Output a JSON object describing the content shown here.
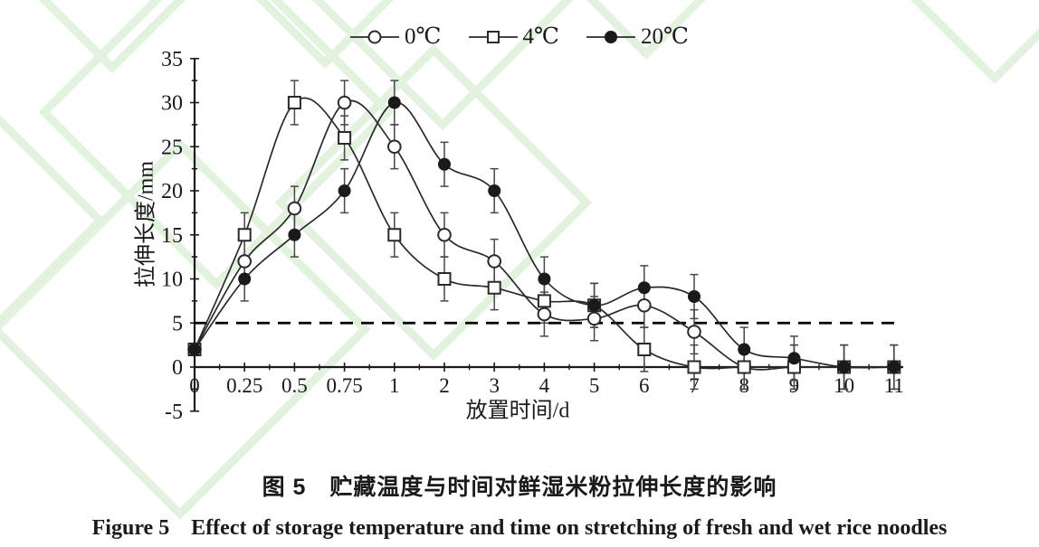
{
  "page": {
    "background_color": "#ffffff",
    "watermark_color": "#e2f2df",
    "ink_color": "#1a1a1a"
  },
  "legend": {
    "items": [
      {
        "label": "0℃",
        "marker": "open-circle"
      },
      {
        "label": "4℃",
        "marker": "open-square"
      },
      {
        "label": "20℃",
        "marker": "filled-circle"
      }
    ]
  },
  "chart_data": {
    "type": "line",
    "title": "",
    "xlabel": "放置时间/d",
    "ylabel": "拉伸长度/mm",
    "categories": [
      "0",
      "0.25",
      "0.5",
      "0.75",
      "1",
      "2",
      "3",
      "4",
      "5",
      "6",
      "7",
      "8",
      "9",
      "10",
      "11"
    ],
    "y_ticks": [
      -5,
      0,
      5,
      10,
      15,
      20,
      25,
      30,
      35
    ],
    "y_minor_step": 2.5,
    "ylim": [
      -5,
      35
    ],
    "grid": false,
    "legend_position": "top-center",
    "line_color": "#2a2a2a",
    "error_color": "#474747",
    "reference_line": {
      "y": 5,
      "style": "dashed",
      "color": "#000000"
    },
    "series": [
      {
        "name": "0℃",
        "marker": "open-circle",
        "values": [
          2,
          12,
          18,
          30,
          25,
          15,
          12,
          6,
          5.5,
          7,
          4,
          0,
          0,
          0,
          0
        ],
        "errors": [
          0,
          2.5,
          2.5,
          2.5,
          2.5,
          2.5,
          2.5,
          2.5,
          2.5,
          2.5,
          2.5,
          2.5,
          2.5,
          2.5,
          2.5
        ]
      },
      {
        "name": "4℃",
        "marker": "open-square",
        "values": [
          2,
          15,
          30,
          26,
          15,
          10,
          9,
          7.5,
          7,
          2,
          0,
          0,
          0,
          0,
          0
        ],
        "errors": [
          0,
          2.5,
          2.5,
          2.5,
          2.5,
          2.5,
          2.5,
          2.5,
          2.5,
          2.5,
          2.5,
          2.5,
          2.5,
          2.5,
          2.5
        ]
      },
      {
        "name": "20℃",
        "marker": "filled-circle",
        "values": [
          2,
          10,
          15,
          20,
          30,
          23,
          20,
          10,
          7,
          9,
          8,
          2,
          1,
          0,
          0
        ],
        "errors": [
          0,
          2.5,
          2.5,
          2.5,
          2.5,
          2.5,
          2.5,
          2.5,
          2.5,
          2.5,
          2.5,
          2.5,
          2.5,
          2.5,
          2.5
        ]
      }
    ]
  },
  "captions": {
    "zh": "图 5　贮藏温度与时间对鲜湿米粉拉伸长度的影响",
    "en": "Figure 5　Effect of storage temperature and time on stretching of fresh and wet rice noodles"
  }
}
